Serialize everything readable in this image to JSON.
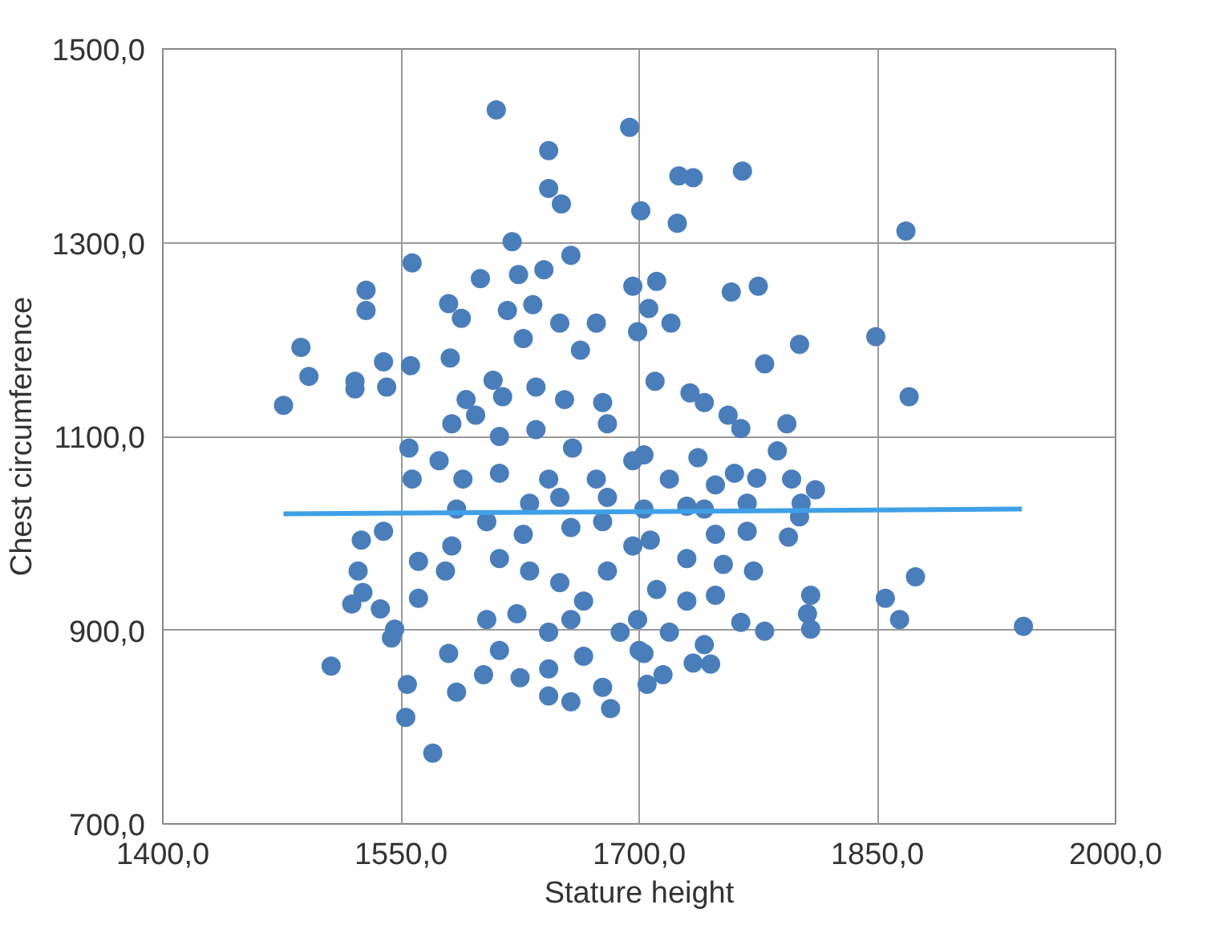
{
  "chart_data": {
    "type": "scatter",
    "xlabel": "Stature height",
    "ylabel": "Chest circumference",
    "xlim": [
      1400,
      2000
    ],
    "ylim": [
      700,
      1500
    ],
    "xticks": [
      {
        "value": 1400,
        "label": "1400,0"
      },
      {
        "value": 1550,
        "label": "1550,0"
      },
      {
        "value": 1700,
        "label": "1700,0"
      },
      {
        "value": 1850,
        "label": "1850,0"
      },
      {
        "value": 2000,
        "label": "2000,0"
      }
    ],
    "yticks": [
      {
        "value": 700,
        "label": "700,0"
      },
      {
        "value": 900,
        "label": "900,0"
      },
      {
        "value": 1100,
        "label": "1100,0"
      },
      {
        "value": 1300,
        "label": "1300,0"
      },
      {
        "value": 1500,
        "label": "1500,0"
      }
    ],
    "grid": true,
    "marker": "circle",
    "series": [
      {
        "color": "#4a7ebb",
        "x": [
          1610,
          1694,
          1643,
          1643,
          1651,
          1701,
          1620,
          1557,
          1600,
          1624,
          1640,
          1657,
          1528,
          1528,
          1580,
          1588,
          1617,
          1633,
          1627,
          1650,
          1487,
          1492,
          1476,
          1521,
          1521,
          1539,
          1541,
          1556,
          1581,
          1608,
          1635,
          1591,
          1614,
          1653,
          1663,
          1673,
          1677,
          1555,
          1574,
          1557,
          1582,
          1597,
          1612,
          1635,
          1658,
          1680,
          1589,
          1612,
          1643,
          1673,
          1696,
          1525,
          1539,
          1523,
          1526,
          1519,
          1537,
          1544,
          1546,
          1506,
          1554,
          1553,
          1570,
          1585,
          1580,
          1643,
          1657,
          1682,
          1602,
          1625,
          1643,
          1561,
          1561,
          1578,
          1585,
          1604,
          1582,
          1612,
          1631,
          1650,
          1665,
          1680,
          1696,
          1623,
          1643,
          1657,
          1604,
          1688,
          1700,
          1627,
          1657,
          1677,
          1631,
          1650,
          1680,
          1703,
          1612,
          1665,
          1677,
          1725,
          1734,
          1765,
          1724,
          1868,
          1696,
          1711,
          1706,
          1720,
          1758,
          1775,
          1801,
          1779,
          1849,
          1870,
          1699,
          1710,
          1732,
          1741,
          1756,
          1764,
          1793,
          1787,
          1774,
          1796,
          1811,
          1802,
          1801,
          1794,
          1703,
          1719,
          1737,
          1748,
          1760,
          1730,
          1768,
          1748,
          1707,
          1730,
          1753,
          1772,
          1874,
          1855,
          1864,
          1942,
          1808,
          1806,
          1808,
          1779,
          1764,
          1748,
          1730,
          1711,
          1699,
          1719,
          1741,
          1734,
          1745,
          1703,
          1705,
          1715,
          1741,
          1768
        ],
        "values": [
          1437,
          1419,
          1395,
          1356,
          1340,
          1333,
          1301,
          1279,
          1263,
          1267,
          1272,
          1287,
          1251,
          1230,
          1237,
          1222,
          1230,
          1236,
          1201,
          1217,
          1192,
          1162,
          1132,
          1157,
          1149,
          1177,
          1151,
          1173,
          1181,
          1158,
          1151,
          1138,
          1141,
          1138,
          1189,
          1217,
          1135,
          1088,
          1075,
          1056,
          1113,
          1122,
          1100,
          1107,
          1088,
          1113,
          1056,
          1062,
          1056,
          1056,
          1075,
          993,
          1002,
          961,
          939,
          927,
          922,
          892,
          901,
          863,
          844,
          810,
          773,
          836,
          876,
          832,
          826,
          819,
          854,
          851,
          860,
          971,
          933,
          961,
          1025,
          1012,
          987,
          974,
          961,
          949,
          930,
          961,
          987,
          917,
          898,
          911,
          911,
          898,
          879,
          999,
          1006,
          1012,
          1031,
          1037,
          1037,
          1025,
          879,
          873,
          841,
          1369,
          1367,
          1374,
          1320,
          1312,
          1255,
          1260,
          1232,
          1217,
          1249,
          1255,
          1195,
          1175,
          1203,
          1141,
          1208,
          1157,
          1145,
          1135,
          1122,
          1108,
          1113,
          1085,
          1057,
          1056,
          1045,
          1031,
          1017,
          996,
          1081,
          1056,
          1078,
          1050,
          1062,
          1028,
          1002,
          999,
          993,
          974,
          968,
          961,
          955,
          933,
          911,
          904,
          936,
          917,
          901,
          899,
          908,
          936,
          930,
          942,
          911,
          898,
          885,
          866,
          865,
          876,
          844,
          854,
          1025,
          1031
        ]
      },
      {
        "type": "line",
        "color": "#3fa0e8",
        "marker": "none",
        "x": [
          1476,
          1941
        ],
        "values": [
          1020,
          1025
        ]
      }
    ]
  }
}
